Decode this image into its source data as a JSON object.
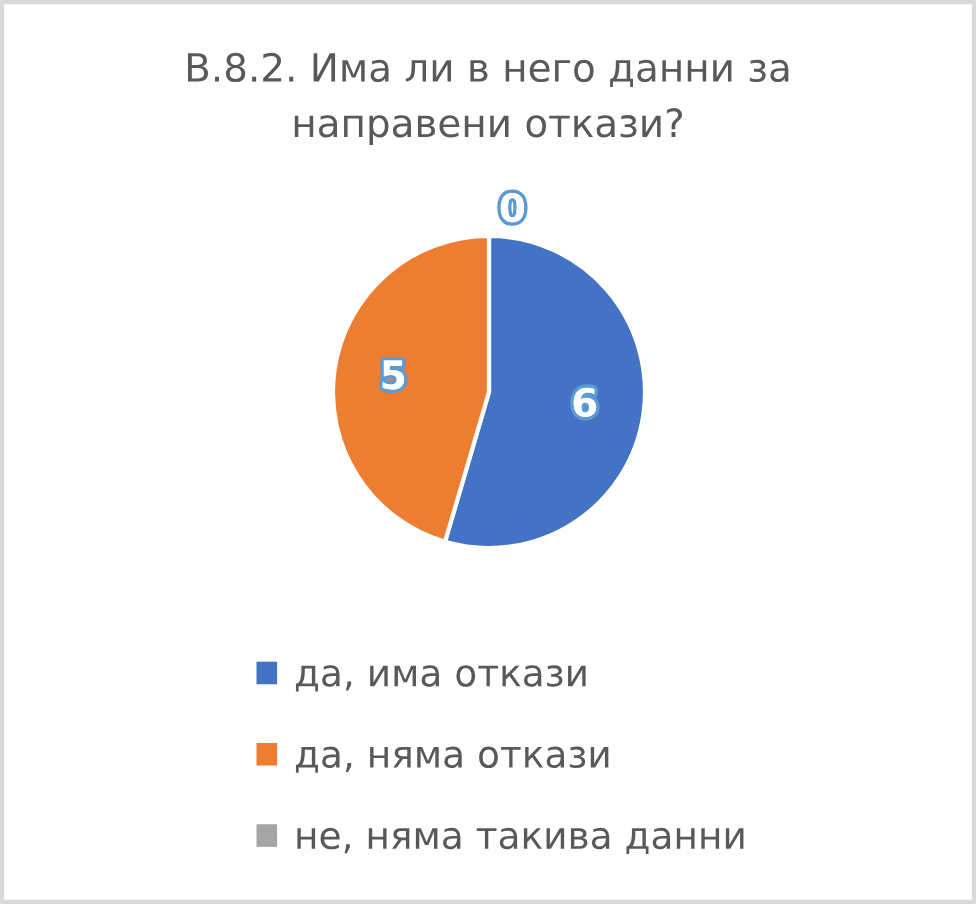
{
  "chart_data": {
    "type": "pie",
    "title": "В.8.2. Има ли в него данни за направени откази?",
    "categories": [
      "да, има откази",
      "да, няма откази",
      "не, няма такива данни"
    ],
    "values": [
      6,
      5,
      0
    ],
    "colors": [
      "#4472c4",
      "#ed7d31",
      "#a5a5a5"
    ],
    "data_labels": true,
    "legend": "bottom"
  }
}
